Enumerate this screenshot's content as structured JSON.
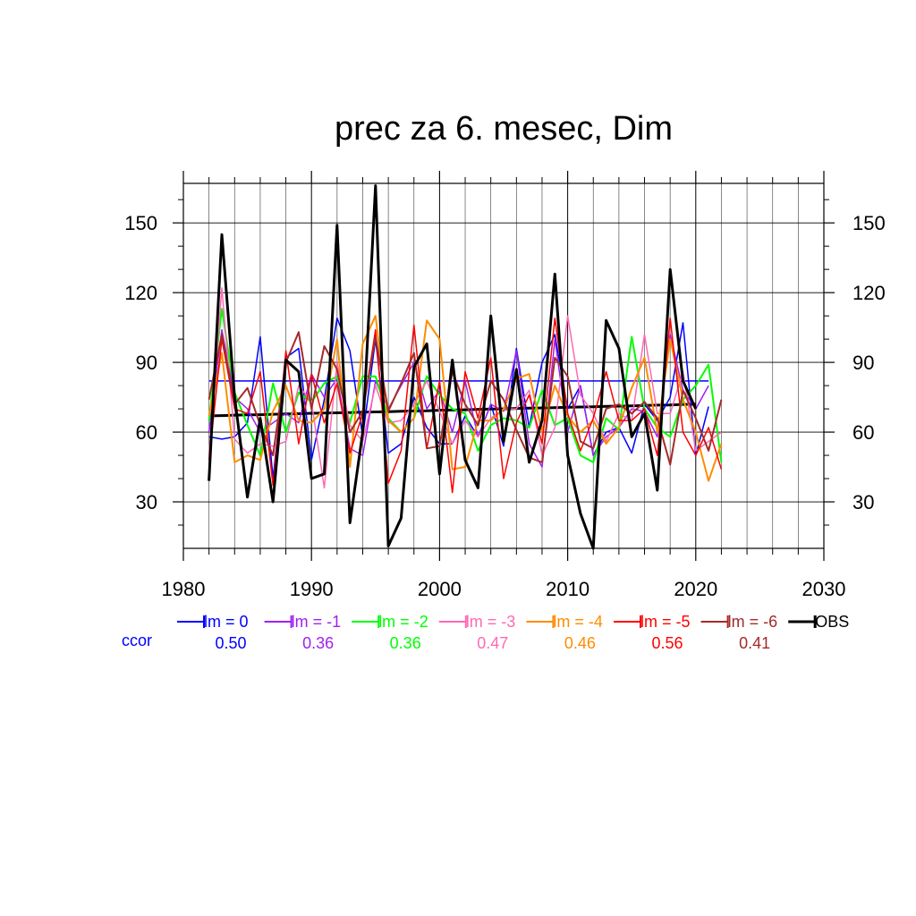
{
  "chart_data": {
    "type": "line",
    "title": "prec za 6. mesec, Dim",
    "xlabel": "",
    "ylabel": "",
    "xlim": [
      1980,
      2030
    ],
    "ylim": [
      10,
      167
    ],
    "x_ticks": [
      1980,
      1990,
      2000,
      2010,
      2020,
      2030
    ],
    "y_ticks": [
      30,
      60,
      90,
      120,
      150
    ],
    "grid": true,
    "legend_position": "bottom",
    "ccor_label": "ccor",
    "x": [
      1982,
      1983,
      1984,
      1985,
      1986,
      1987,
      1988,
      1989,
      1990,
      1991,
      1992,
      1993,
      1994,
      1995,
      1996,
      1997,
      1998,
      1999,
      2000,
      2001,
      2002,
      2003,
      2004,
      2005,
      2006,
      2007,
      2008,
      2009,
      2010,
      2011,
      2012,
      2013,
      2014,
      2015,
      2016,
      2017,
      2018,
      2019,
      2020,
      2021,
      2022
    ],
    "series": [
      {
        "name": "lm = 0",
        "color": "#0000ff",
        "ccor": "0.50",
        "width": 1.5,
        "values": [
          58,
          57,
          58,
          64,
          101,
          40,
          92,
          96,
          48,
          74,
          109,
          95,
          58,
          100,
          51,
          55,
          75,
          62,
          55,
          55,
          67,
          58,
          72,
          54,
          96,
          62,
          90,
          102,
          70,
          80,
          50,
          60,
          62,
          51,
          72,
          65,
          75,
          107,
          50,
          71,
          null
        ],
        "trend": [
          82,
          82,
          82,
          82,
          82,
          82,
          82,
          82,
          82,
          82,
          82,
          82,
          82,
          82,
          82,
          82,
          82,
          82,
          82,
          82,
          82,
          82,
          82,
          82,
          82,
          82,
          82,
          82,
          82,
          82,
          82,
          82,
          82,
          82,
          82,
          82,
          82,
          82,
          82,
          82,
          null
        ]
      },
      {
        "name": "lm = -1",
        "color": "#a020f0",
        "ccor": "0.36",
        "width": 1.5,
        "values": [
          60,
          104,
          75,
          70,
          60,
          64,
          68,
          64,
          85,
          75,
          83,
          53,
          50,
          82,
          70,
          80,
          90,
          70,
          78,
          60,
          82,
          58,
          72,
          69,
          95,
          55,
          45,
          100,
          60,
          80,
          50,
          58,
          62,
          70,
          69,
          58,
          102,
          78,
          70,
          80,
          null
        ]
      },
      {
        "name": "lm = -2",
        "color": "#00ff00",
        "ccor": "0.36",
        "width": 2.0,
        "values": [
          65,
          113,
          77,
          63,
          50,
          81,
          60,
          77,
          73,
          81,
          84,
          64,
          84,
          84,
          66,
          60,
          66,
          84,
          76,
          70,
          68,
          52,
          63,
          66,
          65,
          62,
          78,
          63,
          66,
          50,
          47,
          66,
          61,
          101,
          70,
          62,
          58,
          74,
          80,
          89,
          47
        ]
      },
      {
        "name": "lm = -3",
        "color": "#ff69b4",
        "ccor": "0.47",
        "width": 1.5,
        "values": [
          50,
          122,
          57,
          51,
          55,
          54,
          56,
          80,
          73,
          36,
          90,
          63,
          56,
          80,
          64,
          65,
          72,
          82,
          69,
          55,
          65,
          58,
          66,
          70,
          70,
          78,
          50,
          62,
          110,
          76,
          68,
          56,
          68,
          65,
          102,
          68,
          68,
          86,
          52,
          56,
          60
        ]
      },
      {
        "name": "lm = -4",
        "color": "#ff8c00",
        "ccor": "0.46",
        "width": 2.0,
        "values": [
          67,
          94,
          47,
          50,
          48,
          69,
          80,
          65,
          64,
          70,
          100,
          45,
          98,
          110,
          65,
          60,
          66,
          108,
          100,
          44,
          45,
          65,
          65,
          70,
          83,
          85,
          60,
          80,
          67,
          60,
          65,
          55,
          62,
          79,
          92,
          60,
          100,
          74,
          60,
          39,
          55
        ]
      },
      {
        "name": "lm = -5",
        "color": "#ff0000",
        "ccor": "0.56",
        "width": 1.5,
        "values": [
          48,
          100,
          70,
          68,
          86,
          37,
          95,
          55,
          85,
          64,
          81,
          51,
          68,
          104,
          38,
          52,
          106,
          53,
          82,
          34,
          86,
          66,
          92,
          40,
          64,
          76,
          55,
          109,
          68,
          52,
          66,
          86,
          65,
          65,
          70,
          50,
          109,
          60,
          50,
          62,
          44
        ]
      },
      {
        "name": "lm = -6",
        "color": "#a52a2a",
        "ccor": "0.41",
        "width": 2.0,
        "values": [
          74,
          102,
          72,
          79,
          63,
          50,
          90,
          103,
          70,
          97,
          87,
          60,
          69,
          101,
          69,
          81,
          94,
          53,
          54,
          86,
          72,
          63,
          82,
          74,
          61,
          49,
          47,
          92,
          84,
          56,
          53,
          70,
          72,
          68,
          73,
          66,
          46,
          78,
          66,
          52,
          74
        ]
      },
      {
        "name": "OBS",
        "color": "#000000",
        "ccor": "",
        "width": 3.0,
        "values": [
          39,
          145,
          75,
          32,
          66,
          30,
          91,
          86,
          40,
          42,
          149,
          21,
          60,
          166,
          11,
          23,
          88,
          98,
          42,
          91,
          48,
          36,
          110,
          56,
          87,
          47,
          65,
          128,
          50,
          25,
          10,
          108,
          96,
          58,
          68,
          35,
          130,
          82,
          70,
          null,
          null
        ],
        "trend": [
          67,
          67.1,
          67.3,
          67.4,
          67.5,
          67.7,
          67.8,
          67.9,
          68.1,
          68.2,
          68.3,
          68.4,
          68.6,
          68.7,
          68.8,
          69,
          69.1,
          69.2,
          69.4,
          69.5,
          69.6,
          69.8,
          69.9,
          70,
          70.2,
          70.3,
          70.4,
          70.5,
          70.7,
          70.8,
          70.9,
          71.1,
          71.2,
          71.3,
          71.5,
          71.6,
          71.7,
          71.9,
          72,
          null,
          null
        ]
      }
    ]
  }
}
